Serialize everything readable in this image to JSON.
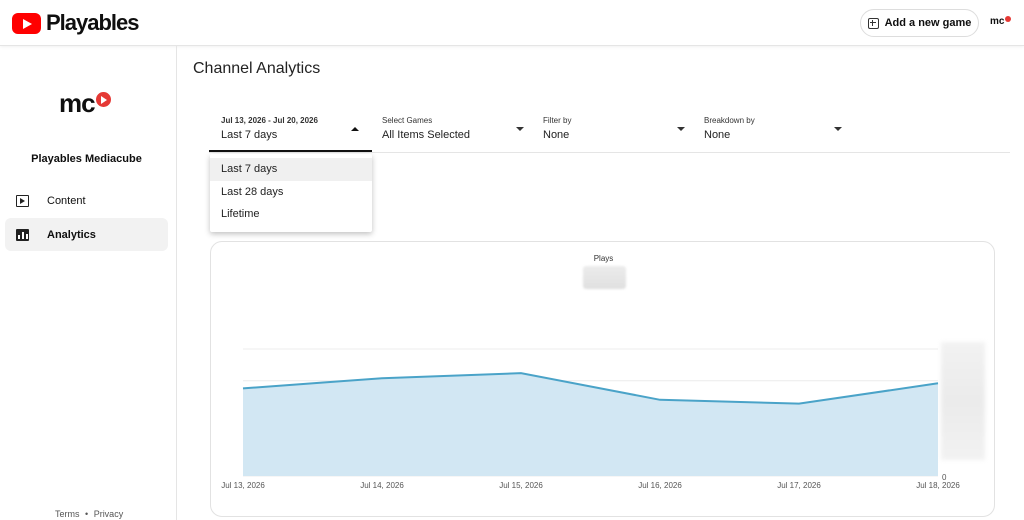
{
  "app": {
    "name": "Playables",
    "add_game_label": "Add a new game",
    "avatar_text": "mc"
  },
  "sidebar": {
    "logo_text": "mc",
    "channel_name": "Playables Mediacube",
    "items": [
      {
        "label": "Content",
        "icon": "content-icon"
      },
      {
        "label": "Analytics",
        "icon": "analytics-icon",
        "active": true
      }
    ],
    "footer": {
      "terms": "Terms",
      "sep": "•",
      "privacy": "Privacy"
    }
  },
  "main": {
    "title": "Channel Analytics",
    "filters": [
      {
        "top": "Jul 13, 2026 - Jul 20, 2026",
        "value": "Last 7 days",
        "open": true
      },
      {
        "top": "Select Games",
        "value": "All Items Selected"
      },
      {
        "top": "Filter by",
        "value": "None"
      },
      {
        "top": "Breakdown by",
        "value": "None"
      }
    ],
    "dropdown_options": [
      "Last 7 days",
      "Last 28 days",
      "Lifetime"
    ]
  },
  "colors": {
    "accent": "#4aa3c8",
    "fill": "#d2e7f3",
    "brand_red": "#ff0000"
  },
  "chart_data": {
    "type": "area",
    "title": "Plays",
    "categories": [
      "Jul 13, 2026",
      "Jul 14, 2026",
      "Jul 15, 2026",
      "Jul 16, 2026",
      "Jul 17, 2026",
      "Jul 18, 2026"
    ],
    "values": [
      0.69,
      0.77,
      0.81,
      0.6,
      0.57,
      0.73
    ],
    "ylim": [
      0,
      1
    ],
    "y_tick_zero": "0",
    "note": "Y values are relative (axis labels blurred in source)",
    "grid": true
  }
}
